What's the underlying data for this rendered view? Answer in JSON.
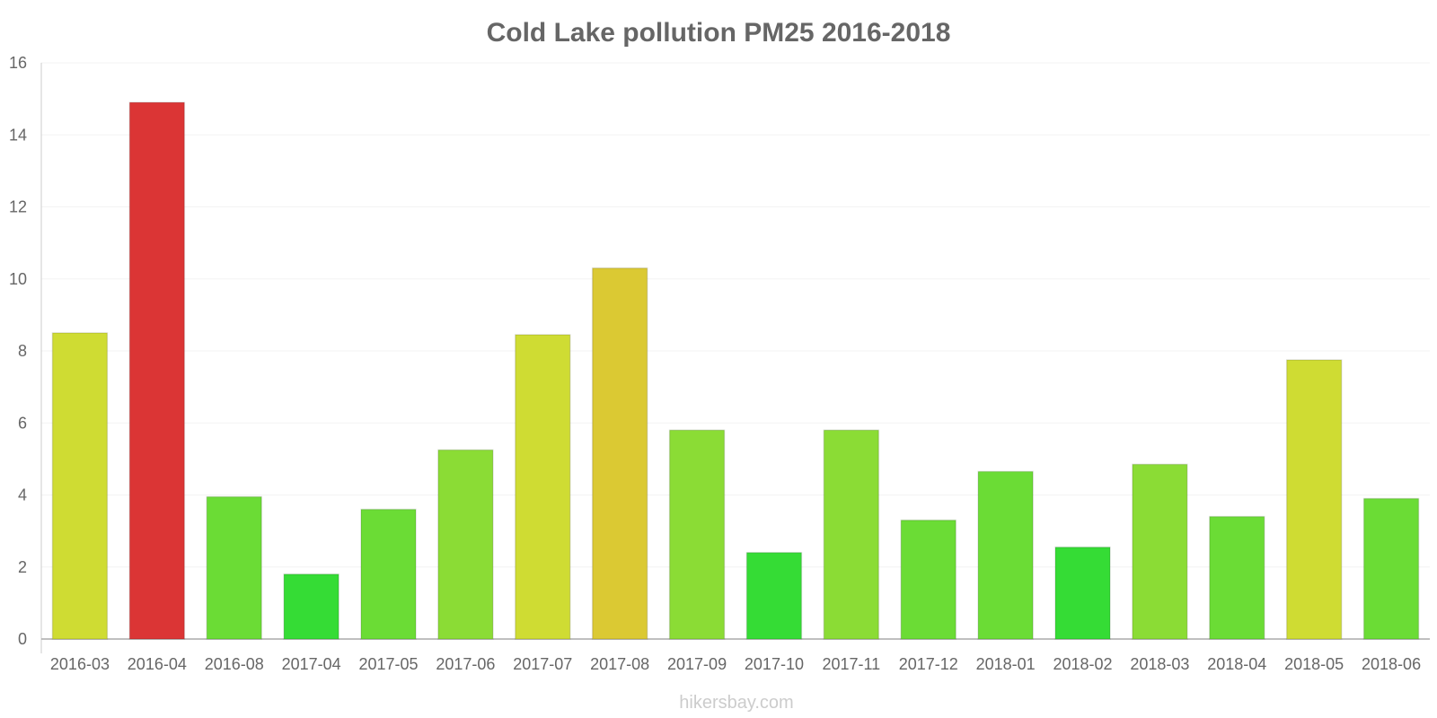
{
  "chart_data": {
    "type": "bar",
    "title": "Cold Lake pollution PM25 2016-2018",
    "xlabel": "",
    "ylabel": "",
    "ylim": [
      0,
      16
    ],
    "yticks": [
      0,
      2,
      4,
      6,
      8,
      10,
      12,
      14,
      16
    ],
    "grid": true,
    "categories": [
      "2016-03",
      "2016-04",
      "2016-08",
      "2017-04",
      "2017-05",
      "2017-06",
      "2017-07",
      "2017-08",
      "2017-09",
      "2017-10",
      "2017-11",
      "2017-12",
      "2018-01",
      "2018-02",
      "2018-03",
      "2018-04",
      "2018-05",
      "2018-06"
    ],
    "values": [
      8.5,
      14.9,
      3.95,
      1.8,
      3.6,
      5.25,
      8.45,
      10.3,
      5.8,
      2.4,
      5.8,
      3.3,
      4.65,
      2.55,
      4.85,
      3.4,
      7.75,
      3.9
    ],
    "colors": [
      "#cfdc33",
      "#db3535",
      "#6bdc35",
      "#35dc35",
      "#6bdc35",
      "#8bdc35",
      "#cfdc33",
      "#dbc933",
      "#8bdc35",
      "#35dc35",
      "#8bdc35",
      "#6bdc35",
      "#6bdc35",
      "#35dc35",
      "#8bdc35",
      "#6bdc35",
      "#cfdc33",
      "#6bdc35"
    ]
  },
  "watermark": "hikersbay.com"
}
